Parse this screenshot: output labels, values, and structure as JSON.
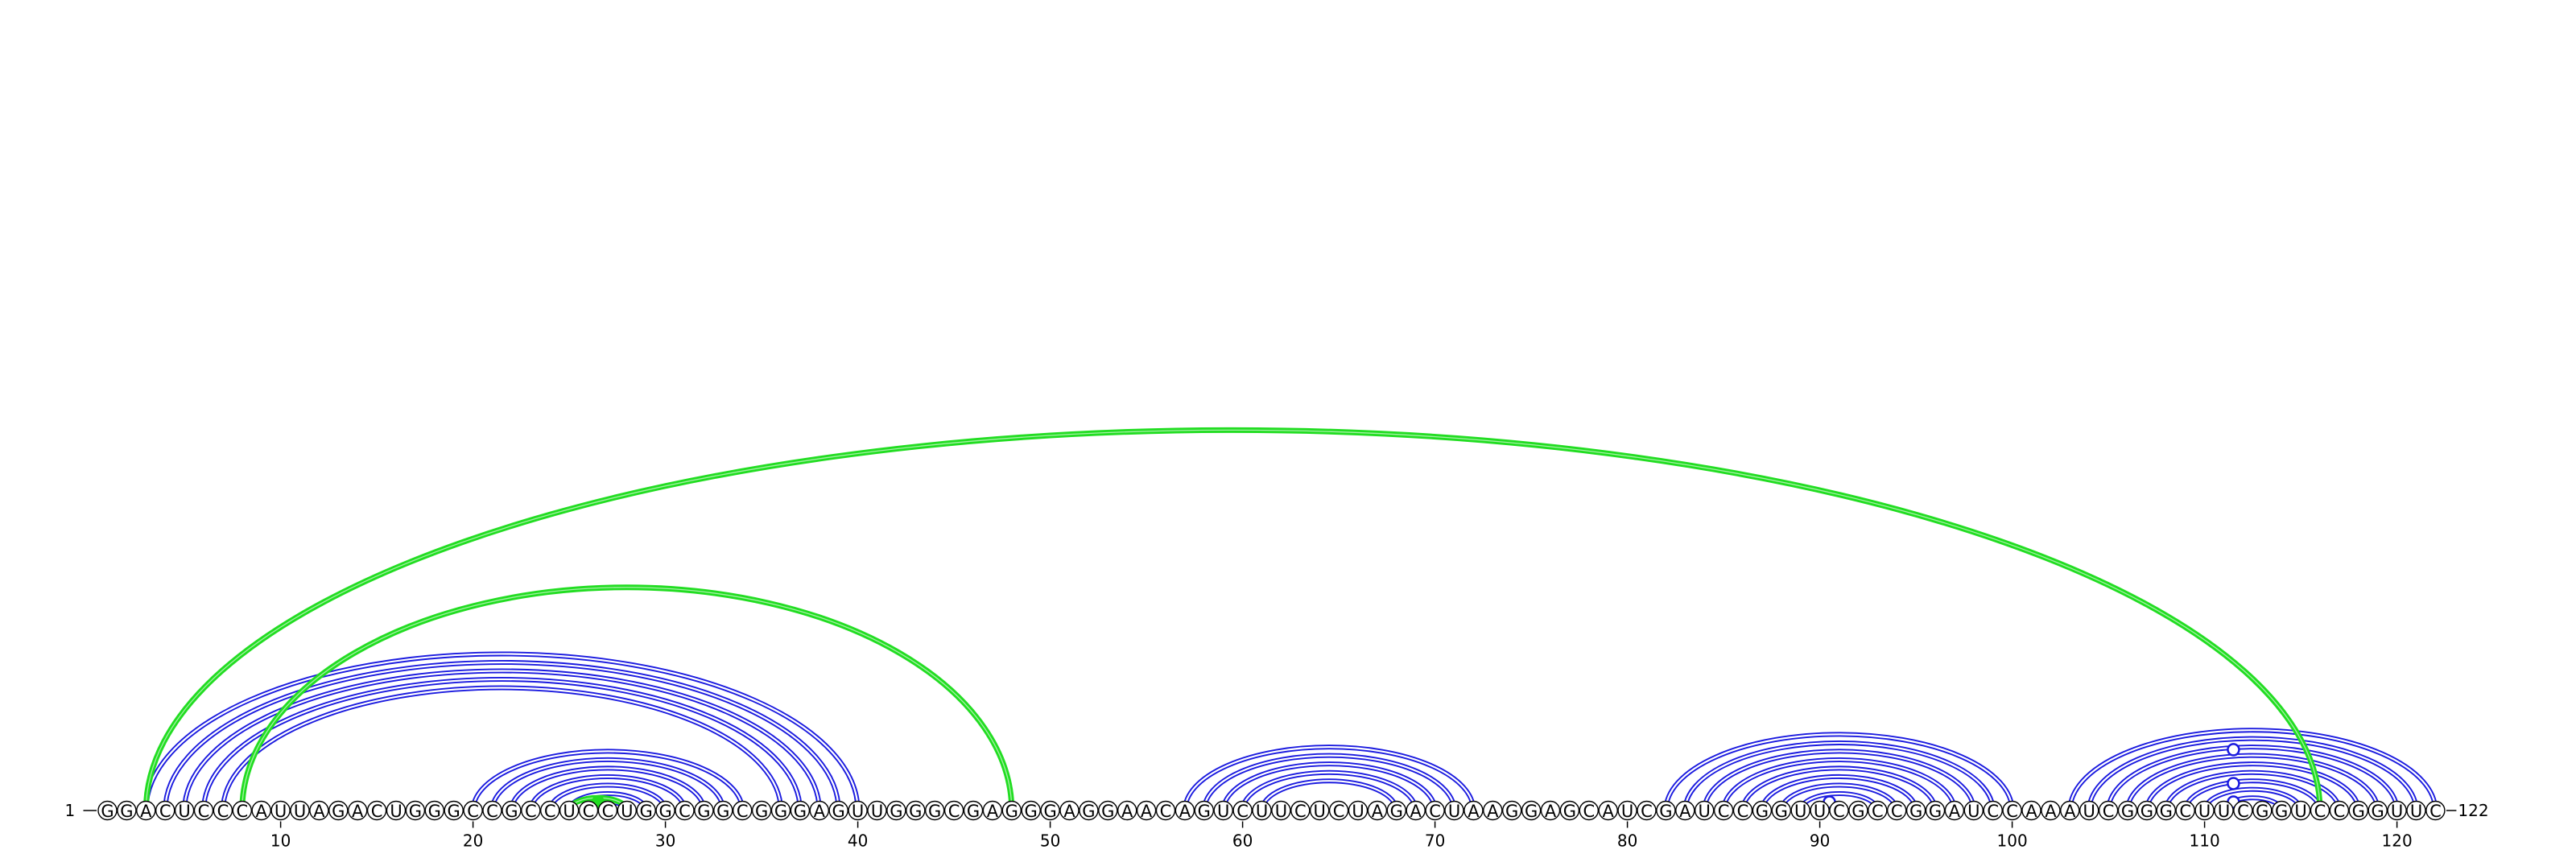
{
  "diagram": {
    "type": "rna-arc-diagram",
    "sequence": "GGACUCCCAUUAGACUGGGCCGCCUCCUGGCGGCGGGAGUUGGGCGAGGGAGGAACAGUCUUCUCUAGACUAAGGAGCAUCGAUCCGGUUCGCCGGAUCCAAAUCGGGCUUCGGUCCGGUUC",
    "length": 122,
    "start_label": "1",
    "end_label": "122",
    "tick_positions": [
      10,
      20,
      30,
      40,
      50,
      60,
      70,
      80,
      90,
      100,
      110,
      120
    ],
    "tick_labels": [
      "10",
      "20",
      "30",
      "40",
      "50",
      "60",
      "70",
      "80",
      "90",
      "100",
      "110",
      "120"
    ],
    "colors": {
      "blue_arc": "#1a1adf",
      "green_arc": "#22dd22",
      "circle_stroke": "#000000",
      "text": "#000000"
    },
    "blue_helices": [
      {
        "i": 3,
        "j": 40,
        "n": 5
      },
      {
        "i": 20,
        "j": 34,
        "n": 7
      },
      {
        "i": 57,
        "j": 72,
        "n": 5
      },
      {
        "i": 82,
        "j": 100,
        "n": 8
      },
      {
        "i": 103,
        "j": 122,
        "n": 9
      }
    ],
    "green_arcs": [
      {
        "i": 3,
        "j": 116
      },
      {
        "i": 8,
        "j": 48
      },
      {
        "i": 25,
        "j": 28
      }
    ],
    "arc_markers": [
      {
        "pos": 26.5,
        "level": 1,
        "filled": true,
        "color": "green"
      },
      {
        "pos": 90.5,
        "level": 1,
        "filled": false,
        "color": "blue"
      },
      {
        "pos": 111.5,
        "level": 1,
        "filled": false,
        "color": "blue"
      },
      {
        "pos": 111.5,
        "level": 3,
        "filled": false,
        "color": "blue"
      },
      {
        "pos": 111.5,
        "level": 7,
        "filled": false,
        "color": "blue"
      }
    ]
  }
}
